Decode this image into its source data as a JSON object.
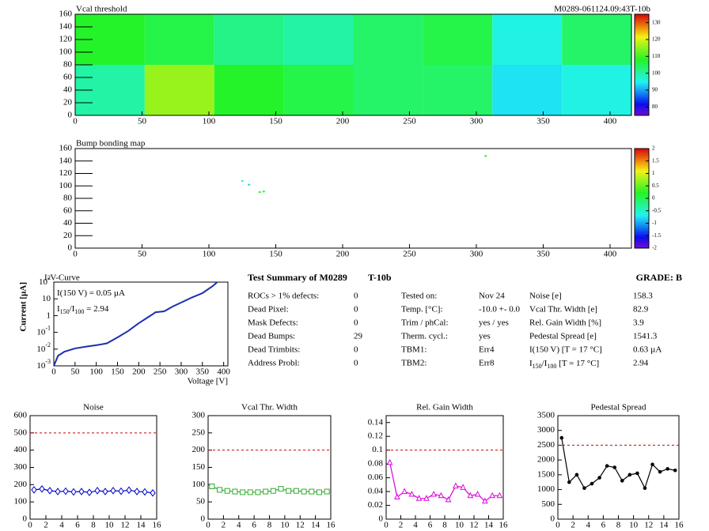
{
  "chart_data": [
    {
      "type": "heatmap",
      "title": "Vcal threshold",
      "subtitle": "M0289-061124.09:43T-10b",
      "xbins": [
        0,
        52,
        104,
        156,
        208,
        260,
        312,
        364,
        416
      ],
      "ybins": [
        0,
        80,
        160
      ],
      "z": [
        [
          100,
          116,
          108,
          106,
          104,
          104,
          94,
          96
        ],
        [
          108,
          106,
          102,
          100,
          104,
          106,
          96,
          104
        ]
      ],
      "xlim": [
        0,
        416
      ],
      "ylim": [
        0,
        160
      ],
      "xticks": [
        0,
        50,
        100,
        150,
        200,
        250,
        300,
        350,
        400
      ],
      "yticks": [
        0,
        20,
        40,
        60,
        80,
        100,
        120,
        140,
        160
      ],
      "zlim": [
        75,
        135
      ],
      "zticks": [
        80,
        90,
        100,
        110,
        120,
        130
      ]
    },
    {
      "type": "pixelmap",
      "title": "Bump bonding map",
      "x": [
        307,
        125,
        130,
        138,
        141
      ],
      "y": [
        148,
        108,
        102,
        90,
        91
      ],
      "z": [
        0.2,
        -0.6,
        -0.8,
        0.3,
        0.2
      ],
      "xlim": [
        0,
        416
      ],
      "ylim": [
        0,
        160
      ],
      "xticks": [
        0,
        50,
        100,
        150,
        200,
        250,
        300,
        350,
        400
      ],
      "yticks": [
        0,
        20,
        40,
        60,
        80,
        100,
        120,
        140,
        160
      ],
      "zlim": [
        -2,
        2
      ],
      "zticks": [
        -2,
        -1.5,
        -1,
        -0.5,
        0,
        0.5,
        1,
        1.5,
        2
      ]
    },
    {
      "type": "ivcurve",
      "title": "I-V-Curve",
      "xlabel": "Voltage [V]",
      "ylabel": "Current [µA]",
      "color": "#1a2fb0",
      "log_y": true,
      "annotations": [
        [
          "I(150 V) = 0.05 µA"
        ],
        [
          "I",
          "150",
          "/I",
          "100",
          " =  2.94"
        ]
      ],
      "x": [
        0,
        10,
        25,
        50,
        75,
        100,
        125,
        150,
        175,
        200,
        225,
        240,
        260,
        280,
        300,
        325,
        350,
        375,
        385
      ],
      "values": [
        0.001,
        0.004,
        0.007,
        0.011,
        0.014,
        0.017,
        0.022,
        0.05,
        0.12,
        0.35,
        0.9,
        1.6,
        1.8,
        3.5,
        6,
        12,
        22,
        60,
        100
      ],
      "xlim": [
        0,
        410
      ],
      "ylim": [
        0.001,
        100
      ],
      "xticks": [
        0,
        50,
        100,
        150,
        200,
        250,
        300,
        350,
        400
      ],
      "yticks": [
        {
          "value": 0.001,
          "label": "10",
          "exponent": "-3"
        },
        {
          "value": 0.01,
          "label": "10",
          "exponent": "-2"
        },
        {
          "value": 0.1,
          "label": "10",
          "exponent": "-1"
        },
        {
          "value": 1,
          "label": "1"
        },
        {
          "value": 10,
          "label": "10"
        },
        {
          "value": 100,
          "label": "10",
          "exponent": "2"
        }
      ]
    },
    {
      "type": "line",
      "title": "Noise",
      "color": "#0000cc",
      "marker": "diamond",
      "threshold": 500,
      "x": [
        0.5,
        1.5,
        2.5,
        3.5,
        4.5,
        5.5,
        6.5,
        7.5,
        8.5,
        9.5,
        10.5,
        11.5,
        12.5,
        13.5,
        14.5,
        15.5
      ],
      "values": [
        170,
        175,
        165,
        160,
        162,
        158,
        160,
        155,
        165,
        160,
        165,
        162,
        168,
        160,
        158,
        152
      ],
      "xlim": [
        0,
        16
      ],
      "ylim": [
        0,
        600
      ],
      "xticks": [
        0,
        2,
        4,
        6,
        8,
        10,
        12,
        14,
        16
      ],
      "yticks": [
        0,
        100,
        200,
        300,
        400,
        500,
        600
      ]
    },
    {
      "type": "line",
      "title": "Vcal Thr. Width",
      "color": "#33aa33",
      "marker": "square",
      "threshold": 200,
      "x": [
        0.5,
        1.5,
        2.5,
        3.5,
        4.5,
        5.5,
        6.5,
        7.5,
        8.5,
        9.5,
        10.5,
        11.5,
        12.5,
        13.5,
        14.5,
        15.5
      ],
      "values": [
        95,
        85,
        82,
        80,
        78,
        78,
        78,
        80,
        82,
        88,
        82,
        82,
        80,
        80,
        78,
        80
      ],
      "xlim": [
        0,
        16
      ],
      "ylim": [
        0,
        300
      ],
      "xticks": [
        0,
        2,
        4,
        6,
        8,
        10,
        12,
        14,
        16
      ],
      "yticks": [
        0,
        50,
        100,
        150,
        200,
        250,
        300
      ]
    },
    {
      "type": "line",
      "title": "Rel. Gain Width",
      "color": "#dd00dd",
      "marker": "triangle",
      "threshold": 0.1,
      "x": [
        0.5,
        1.5,
        2.5,
        3.5,
        4.5,
        5.5,
        6.5,
        7.5,
        8.5,
        9.5,
        10.5,
        11.5,
        12.5,
        13.5,
        14.5,
        15.5
      ],
      "values": [
        0.082,
        0.032,
        0.04,
        0.036,
        0.03,
        0.03,
        0.036,
        0.034,
        0.028,
        0.048,
        0.046,
        0.034,
        0.036,
        0.026,
        0.034,
        0.034
      ],
      "xlim": [
        0,
        16
      ],
      "ylim": [
        0,
        0.15
      ],
      "xticks": [
        0,
        2,
        4,
        6,
        8,
        10,
        12,
        14,
        16
      ],
      "yticks": [
        0,
        0.02,
        0.04,
        0.06,
        0.08,
        0.1,
        0.12,
        0.14
      ]
    },
    {
      "type": "line",
      "title": "Pedestal Spread",
      "color": "#000000",
      "marker": "circle",
      "threshold": 2500,
      "x": [
        0.5,
        1.5,
        2.5,
        3.5,
        4.5,
        5.5,
        6.5,
        7.5,
        8.5,
        9.5,
        10.5,
        11.5,
        12.5,
        13.5,
        14.5,
        15.5
      ],
      "values": [
        2750,
        1250,
        1500,
        1050,
        1200,
        1400,
        1800,
        1750,
        1300,
        1500,
        1550,
        1050,
        1850,
        1600,
        1700,
        1650
      ],
      "xlim": [
        0,
        16
      ],
      "ylim": [
        0,
        3500
      ],
      "xticks": [
        0,
        2,
        4,
        6,
        8,
        10,
        12,
        14,
        16
      ],
      "yticks": [
        0,
        500,
        1000,
        1500,
        2000,
        2500,
        3000,
        3500
      ]
    }
  ],
  "summary": {
    "title": "Test Summary of M0289",
    "module": "T-10b",
    "grade": "GRADE:  B",
    "columns": [
      [
        [
          "ROCs > 1% defects:",
          "0"
        ],
        [
          "Dead Pixel:",
          "0"
        ],
        [
          "Mask Defects:",
          "0"
        ],
        [
          "Dead Bumps:",
          "29"
        ],
        [
          "Dead Trimbits:",
          "0"
        ],
        [
          "Address Probl:",
          "0"
        ]
      ],
      [
        [
          "Tested on:",
          "Nov 24"
        ],
        [
          "Temp. [°C]:",
          "-10.0 +- 0.0"
        ],
        [
          "Trim / phCal:",
          "yes / yes"
        ],
        [
          "Therm. cycl.:",
          "yes"
        ],
        [
          "TBM1:",
          "Err4"
        ],
        [
          "TBM2:",
          "Err8"
        ]
      ],
      [
        [
          "Noise [e]",
          "158.3"
        ],
        [
          "Vcal Thr. Width [e]",
          "82.9"
        ],
        [
          "Rel. Gain Width [%]",
          "3.9"
        ],
        [
          "Pedestal Spread [e]",
          "1541.3"
        ],
        [
          "I(150 V)  [T = 17 °C]",
          "0.63 µA"
        ],
        [
          [
            "I",
            "150",
            "/I",
            "100",
            "  [T = 17 °C]"
          ],
          "2.94"
        ]
      ]
    ]
  }
}
